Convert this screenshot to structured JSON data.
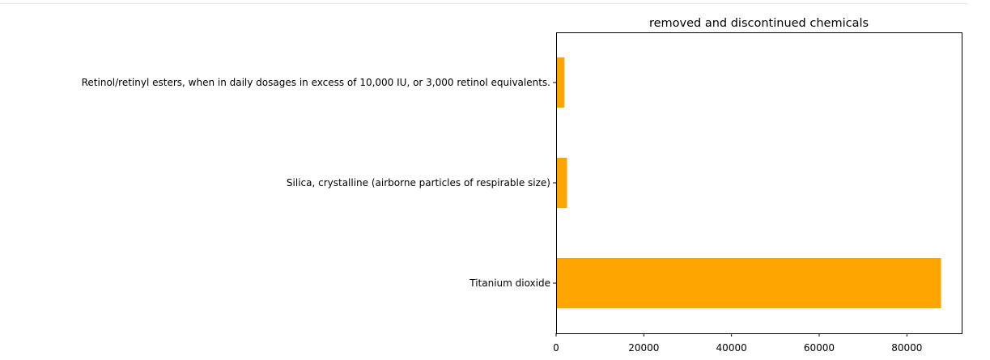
{
  "chart_data": {
    "type": "bar",
    "orientation": "horizontal",
    "title": "removed and discontinued chemicals",
    "xlabel": "",
    "ylabel": "",
    "categories": [
      "Retinol/retinyl esters, when in daily dosages in excess of 10,000 IU, or 3,000 retinol equivalents.",
      "Silica, crystalline (airborne particles of respirable size)",
      "Titanium dioxide"
    ],
    "values": [
      1900,
      2500,
      87800
    ],
    "xlim": [
      0,
      92500
    ],
    "x_ticks": [
      0,
      20000,
      40000,
      60000,
      80000
    ],
    "x_tick_labels": [
      "0",
      "20000",
      "40000",
      "60000",
      "80000"
    ],
    "bar_color": "#ffa500",
    "grid": false,
    "legend": "none"
  }
}
